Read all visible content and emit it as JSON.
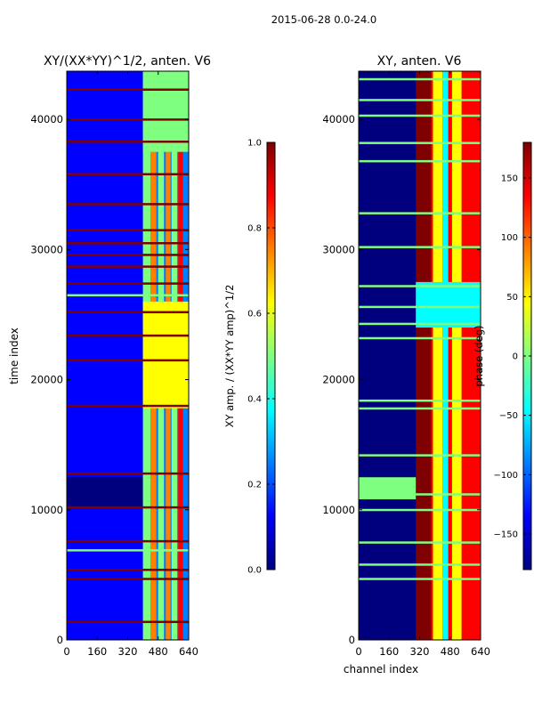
{
  "figure_title": "2015-06-28 0.0-24.0",
  "colormap": [
    "#00007f",
    "#0000ff",
    "#007fff",
    "#00ffff",
    "#7fff7f",
    "#ffff00",
    "#ff7f00",
    "#ff0000",
    "#7f0000"
  ],
  "chart_data": [
    {
      "type": "heatmap",
      "title": "XY/(XX*YY)^1/2, anten. V6",
      "xlabel": "",
      "ylabel": "time index",
      "xlim": [
        0,
        640
      ],
      "ylim": [
        0,
        43700
      ],
      "xticks": [
        0,
        160,
        320,
        480,
        640
      ],
      "yticks": [
        0,
        10000,
        20000,
        30000,
        40000
      ],
      "colorbar": {
        "label": "XY amp. / (XX*YY amp)^1/2",
        "range": [
          0.0,
          1.0
        ],
        "ticks": [
          0.0,
          0.2,
          0.4,
          0.6,
          0.8,
          1.0
        ],
        "tick_labels": [
          "0.0",
          "0.2",
          "0.4",
          "0.6",
          "0.8",
          "1.0"
        ]
      },
      "background_value": 0.18,
      "bands": [
        {
          "x": [
            0,
            400
          ],
          "y": [
            10200,
            12500
          ],
          "value": 0.05
        },
        {
          "x": [
            400,
            640
          ],
          "y": [
            0,
            43700
          ],
          "value": 0.3
        },
        {
          "x": [
            400,
            440
          ],
          "y": [
            0,
            43700
          ],
          "value": 0.45
        },
        {
          "x": [
            440,
            470
          ],
          "y": [
            0,
            43700
          ],
          "value": 0.7
        },
        {
          "x": [
            480,
            510
          ],
          "y": [
            0,
            43700
          ],
          "value": 0.55
        },
        {
          "x": [
            520,
            545
          ],
          "y": [
            0,
            43700
          ],
          "value": 0.8
        },
        {
          "x": [
            550,
            580
          ],
          "y": [
            0,
            43700
          ],
          "value": 0.5
        },
        {
          "x": [
            585,
            610
          ],
          "y": [
            0,
            43700
          ],
          "value": 0.85
        },
        {
          "x": [
            400,
            640
          ],
          "y": [
            17800,
            26000
          ],
          "value": 0.6
        },
        {
          "x": [
            400,
            640
          ],
          "y": [
            37500,
            43700
          ],
          "value": 0.55
        }
      ],
      "hlines": [
        {
          "y": 1400,
          "value": 0.95
        },
        {
          "y": 4700,
          "value": 0.95
        },
        {
          "y": 5400,
          "value": 0.95
        },
        {
          "y": 6900,
          "value": 0.55
        },
        {
          "y": 7600,
          "value": 1.0
        },
        {
          "y": 10200,
          "value": 1.0
        },
        {
          "y": 12800,
          "value": 0.95
        },
        {
          "y": 18000,
          "value": 0.95
        },
        {
          "y": 21500,
          "value": 0.95
        },
        {
          "y": 23400,
          "value": 0.95
        },
        {
          "y": 25200,
          "value": 0.95
        },
        {
          "y": 26500,
          "value": 0.55
        },
        {
          "y": 27400,
          "value": 0.95
        },
        {
          "y": 28700,
          "value": 0.95
        },
        {
          "y": 29600,
          "value": 0.95
        },
        {
          "y": 30500,
          "value": 0.95
        },
        {
          "y": 31500,
          "value": 0.95
        },
        {
          "y": 33500,
          "value": 0.95
        },
        {
          "y": 35800,
          "value": 0.95
        },
        {
          "y": 38300,
          "value": 0.95
        },
        {
          "y": 40000,
          "value": 0.95
        },
        {
          "y": 42300,
          "value": 0.95
        }
      ]
    },
    {
      "type": "heatmap",
      "title": "XY, anten. V6",
      "xlabel": "channel index",
      "ylabel": "",
      "xlim": [
        0,
        640
      ],
      "ylim": [
        0,
        43700
      ],
      "xticks": [
        0,
        160,
        320,
        480,
        640
      ],
      "yticks": [
        0,
        10000,
        20000,
        30000,
        40000
      ],
      "colorbar": {
        "label": "phase (deg)",
        "range": [
          -180,
          180
        ],
        "ticks": [
          -150,
          -100,
          -50,
          0,
          50,
          100,
          150
        ],
        "tick_labels": [
          "−150",
          "−100",
          "−50",
          "0",
          "50",
          "100",
          "150"
        ]
      },
      "background_value": -160,
      "bands": [
        {
          "x": [
            300,
            380
          ],
          "y": [
            0,
            43700
          ],
          "value": 170
        },
        {
          "x": [
            380,
            640
          ],
          "y": [
            0,
            43700
          ],
          "value": 120
        },
        {
          "x": [
            390,
            440
          ],
          "y": [
            0,
            43700
          ],
          "value": 60
        },
        {
          "x": [
            440,
            470
          ],
          "y": [
            0,
            43700
          ],
          "value": -40
        },
        {
          "x": [
            490,
            540
          ],
          "y": [
            0,
            43700
          ],
          "value": 30
        },
        {
          "x": [
            560,
            620
          ],
          "y": [
            0,
            43700
          ],
          "value": 150
        },
        {
          "x": [
            0,
            300
          ],
          "y": [
            10800,
            12500
          ],
          "value": -20
        },
        {
          "x": [
            300,
            640
          ],
          "y": [
            24000,
            27500
          ],
          "value": -60
        }
      ],
      "hlines": [
        {
          "y": 4700,
          "value": -10
        },
        {
          "y": 5800,
          "value": -10
        },
        {
          "y": 7500,
          "value": -10
        },
        {
          "y": 10000,
          "value": -10
        },
        {
          "y": 11200,
          "value": -10
        },
        {
          "y": 14200,
          "value": -10
        },
        {
          "y": 17800,
          "value": -10
        },
        {
          "y": 18400,
          "value": -10
        },
        {
          "y": 23200,
          "value": -10
        },
        {
          "y": 24300,
          "value": -10
        },
        {
          "y": 25600,
          "value": -10
        },
        {
          "y": 27200,
          "value": -10
        },
        {
          "y": 30200,
          "value": -10
        },
        {
          "y": 32800,
          "value": -10
        },
        {
          "y": 36800,
          "value": -10
        },
        {
          "y": 38200,
          "value": -10
        },
        {
          "y": 40300,
          "value": -10
        },
        {
          "y": 41500,
          "value": -10
        },
        {
          "y": 43100,
          "value": -10
        }
      ]
    }
  ]
}
